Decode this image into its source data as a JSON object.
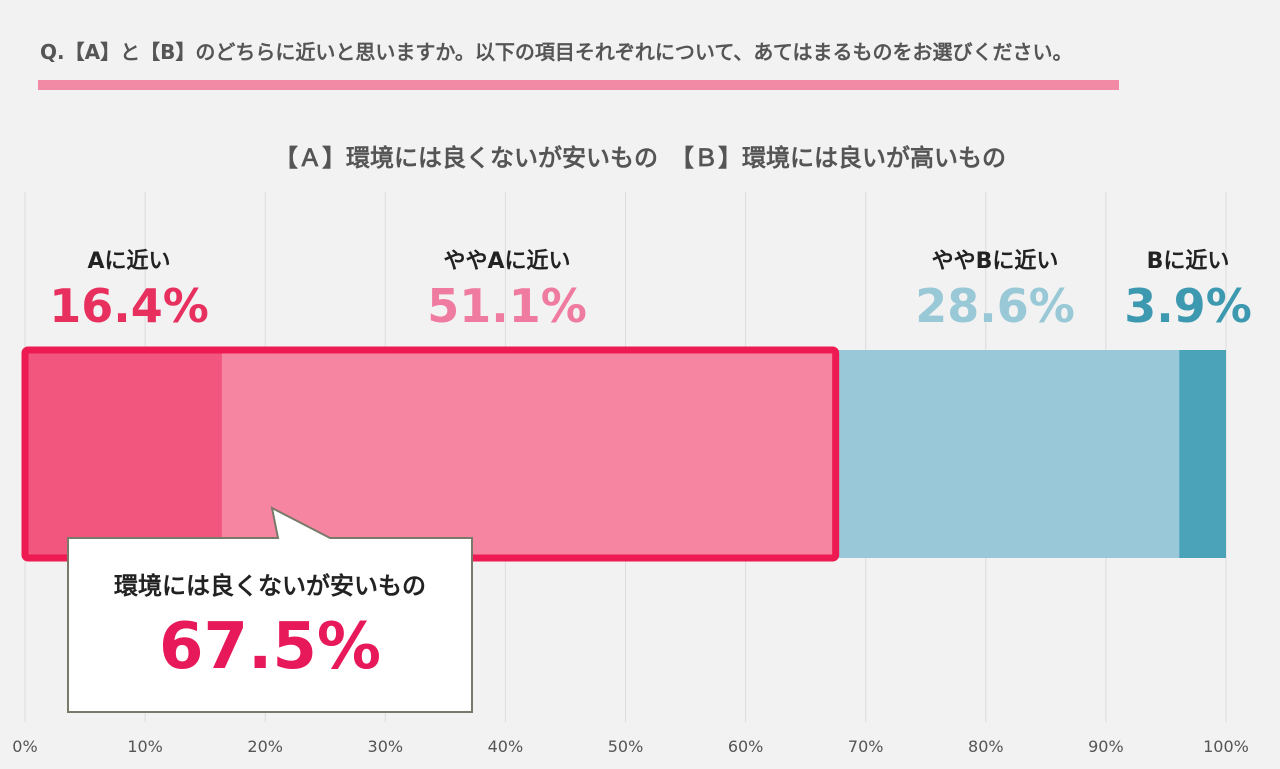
{
  "question": "Q.【A】と【B】のどちらに近いと思いますか。以下の項目それぞれについて、あてはまるものをお選びください。",
  "colors": {
    "accent_line": "#f28aa6",
    "highlight_border": "#ee1b52",
    "callout_value": "#e8195a"
  },
  "chart_data": {
    "type": "bar",
    "orientation": "horizontal-stacked",
    "title": "【Ａ】環境には良くないが安いもの　【Ｂ】環境には良いが高いもの",
    "xlim": [
      0,
      100
    ],
    "grid": true,
    "x_ticks": [
      "0%",
      "10%",
      "20%",
      "30%",
      "40%",
      "50%",
      "60%",
      "70%",
      "80%",
      "90%",
      "100%"
    ],
    "series": [
      {
        "name": "Aに近い",
        "value": 16.4,
        "label": "16.4%",
        "color": "#f2567f",
        "label_color": "#e8305f"
      },
      {
        "name": "ややAに近い",
        "value": 51.1,
        "label": "51.1%",
        "color": "#f685a2",
        "label_color": "#f07ba0"
      },
      {
        "name": "ややBに近い",
        "value": 28.6,
        "label": "28.6%",
        "color": "#99c9d8",
        "label_color": "#99c8d7"
      },
      {
        "name": "Bに近い",
        "value": 3.9,
        "label": "3.9%",
        "color": "#4aa3b8",
        "label_color": "#3d99b0"
      }
    ],
    "callout": {
      "label": "環境には良くないが安いもの",
      "value": "67.5%",
      "value_number": 67.5
    }
  }
}
